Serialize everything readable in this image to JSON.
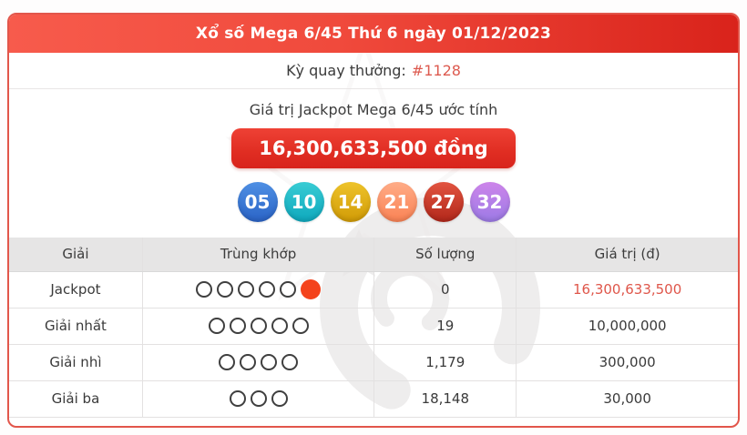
{
  "header": {
    "title": "Xổ số Mega 6/45 Thứ 6 ngày 01/12/2023"
  },
  "draw": {
    "label": "Kỳ quay thưởng:",
    "number": "#1128"
  },
  "jackpot": {
    "title": "Giá trị Jackpot Mega 6/45 ước tính",
    "amount": "16,300,633,500 đồng"
  },
  "balls": [
    {
      "number": "05",
      "color_top": "#4f90e4",
      "color_bottom": "#2a63c6"
    },
    {
      "number": "10",
      "color_top": "#38ccd4",
      "color_bottom": "#0ea8bd"
    },
    {
      "number": "14",
      "color_top": "#eec32a",
      "color_bottom": "#d19b06"
    },
    {
      "number": "21",
      "color_top": "#ffac87",
      "color_bottom": "#fa8254"
    },
    {
      "number": "27",
      "color_top": "#e25440",
      "color_bottom": "#b2271a"
    },
    {
      "number": "32",
      "color_top": "#cd85ea",
      "color_bottom": "#9c7ae6"
    }
  ],
  "table": {
    "headers": [
      "Giải",
      "Trùng khớp",
      "Số lượng",
      "Giá trị (đ)"
    ],
    "rows": [
      {
        "prize": "Jackpot",
        "match_outline": 5,
        "match_filled": 1,
        "quantity": "0",
        "value": "16,300,633,500",
        "value_highlight": true
      },
      {
        "prize": "Giải nhất",
        "match_outline": 5,
        "match_filled": 0,
        "quantity": "19",
        "value": "10,000,000",
        "value_highlight": false
      },
      {
        "prize": "Giải nhì",
        "match_outline": 4,
        "match_filled": 0,
        "quantity": "1,179",
        "value": "300,000",
        "value_highlight": false
      },
      {
        "prize": "Giải ba",
        "match_outline": 3,
        "match_filled": 0,
        "quantity": "18,148",
        "value": "30,000",
        "value_highlight": false
      }
    ]
  },
  "colors": {
    "header_red": "#ef4033",
    "accent_red": "#dd5a4f",
    "jackpot_value_red": "#df564a",
    "filled_circle": "#f4431c",
    "card_border": "#e2564b"
  }
}
